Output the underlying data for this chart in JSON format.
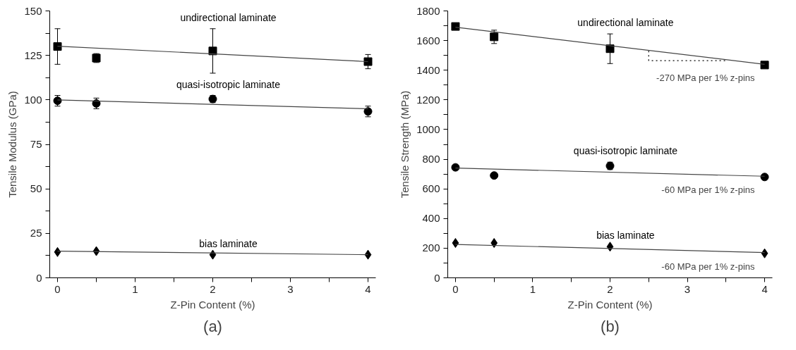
{
  "chart_data": [
    {
      "type": "scatter",
      "xlabel": "Z-Pin Content (%)",
      "ylabel": "Tensile Modulus (GPa)",
      "xlim": [
        -0.1,
        4.1
      ],
      "ylim": [
        0,
        150
      ],
      "xticks": [
        0,
        {
          "value": 0.5,
          "label": null
        },
        1,
        {
          "value": 1.5,
          "label": null
        },
        2,
        {
          "value": 2.5,
          "label": null
        },
        3,
        {
          "value": 3.5,
          "label": null
        },
        4
      ],
      "yticks": [
        0,
        {
          "value": 12.5,
          "label": null
        },
        25,
        {
          "value": 37.5,
          "label": null
        },
        50,
        {
          "value": 62.5,
          "label": null
        },
        75,
        {
          "value": 87.5,
          "label": null
        },
        100,
        {
          "value": 112.5,
          "label": null
        },
        125,
        {
          "value": 137.5,
          "label": null
        },
        150
      ],
      "x": [
        0,
        0.5,
        2,
        4
      ],
      "grid": false,
      "series": [
        {
          "marker": "square",
          "color": "#000000",
          "values": [
            130,
            123.5,
            127.5,
            121.5
          ],
          "errors": [
            10,
            2.5,
            [
              115,
              140
            ],
            4
          ]
        },
        {
          "marker": "circle",
          "color": "#000000",
          "values": [
            99.5,
            98,
            100.5,
            93.5
          ],
          "errors": [
            3,
            3,
            2,
            3
          ]
        },
        {
          "marker": "diamond",
          "color": "#000000",
          "values": [
            14.5,
            15,
            13,
            13
          ]
        },
        {
          "type": "line",
          "line_style": "solid",
          "color": "#444444",
          "x": [
            0,
            4
          ],
          "values": [
            130.2,
            121.5
          ]
        },
        {
          "type": "line",
          "line_style": "solid",
          "color": "#444444",
          "x": [
            0,
            4
          ],
          "values": [
            100,
            95
          ]
        },
        {
          "type": "line",
          "line_style": "solid",
          "color": "#444444",
          "x": [
            0,
            4
          ],
          "values": [
            15,
            13
          ]
        }
      ],
      "annotations": [
        "undirectional laminate",
        "quasi-isotropic laminate",
        "bias laminate",
        "(a)"
      ]
    },
    {
      "type": "scatter",
      "xlabel": "Z-Pin Content (%)",
      "ylabel": "Tensile Strength (MPa)",
      "xlim": [
        -0.1,
        4.1
      ],
      "ylim": [
        0,
        1800
      ],
      "xticks": [
        0,
        {
          "value": 0.5,
          "label": null
        },
        1,
        {
          "value": 1.5,
          "label": null
        },
        2,
        {
          "value": 2.5,
          "label": null
        },
        3,
        {
          "value": 3.5,
          "label": null
        },
        4
      ],
      "yticks": [
        0,
        {
          "value": 100,
          "label": null
        },
        200,
        {
          "value": 300,
          "label": null
        },
        400,
        {
          "value": 500,
          "label": null
        },
        600,
        {
          "value": 700,
          "label": null
        },
        800,
        {
          "value": 900,
          "label": null
        },
        1000,
        {
          "value": 1100,
          "label": null
        },
        1200,
        {
          "value": 1300,
          "label": null
        },
        1400,
        {
          "value": 1500,
          "label": null
        },
        1600,
        {
          "value": 1700,
          "label": null
        },
        1800
      ],
      "x": [
        0,
        0.5,
        2,
        4
      ],
      "grid": false,
      "series": [
        {
          "marker": "square",
          "color": "#000000",
          "values": [
            1695,
            1625,
            1545,
            1435
          ],
          "errors": [
            null,
            [
              1580,
              1670
            ],
            [
              1445,
              1645
            ],
            null
          ]
        },
        {
          "marker": "circle",
          "color": "#000000",
          "values": [
            745,
            690,
            755,
            680
          ],
          "errors": [
            null,
            null,
            25,
            null
          ]
        },
        {
          "marker": "diamond",
          "color": "#000000",
          "values": [
            235,
            235,
            210,
            165
          ]
        },
        {
          "type": "line",
          "name": "-270 MPa per 1% z-pins",
          "line_style": "solid",
          "color": "#444444",
          "x": [
            0,
            4
          ],
          "values": [
            1690,
            1440
          ]
        },
        {
          "type": "line",
          "name": "-60 MPa per 1% z-pins",
          "line_style": "solid",
          "color": "#444444",
          "x": [
            0,
            4
          ],
          "values": [
            740,
            685
          ]
        },
        {
          "type": "line",
          "name": "-60 MPa per 1% z-pins",
          "line_style": "solid",
          "color": "#444444",
          "x": [
            0,
            4
          ],
          "values": [
            225,
            170
          ]
        },
        {
          "type": "line",
          "line_style": "dotted",
          "color": "#000000",
          "x": [
            2.5,
            2.5,
            3.5
          ],
          "values": [
            1530,
            1465,
            1465
          ]
        }
      ],
      "annotations": [
        "undirectional laminate",
        "quasi-isotropic laminate",
        "bias laminate",
        "(b)"
      ]
    }
  ]
}
